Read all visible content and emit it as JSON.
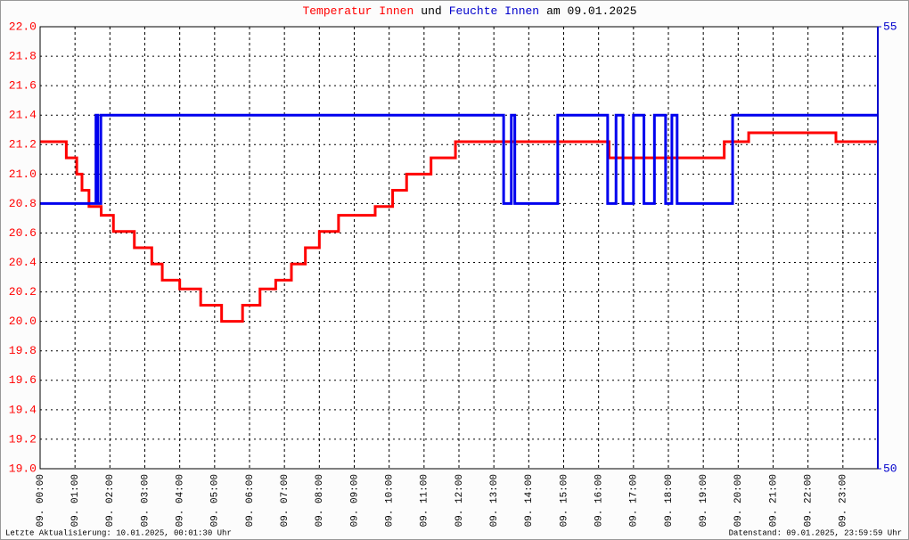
{
  "chart_data": {
    "type": "line",
    "title_parts": [
      {
        "text": "Temperatur Innen",
        "color": "#ff0000"
      },
      {
        "text": "und",
        "color": "#000000"
      },
      {
        "text": "Feuchte Innen",
        "color": "#0000cc"
      },
      {
        "text": "am 09.01.2025",
        "color": "#000000"
      }
    ],
    "footer_left": "Letzte Aktualisierung: 10.01.2025, 00:01:30 Uhr",
    "footer_right": "Datenstand: 09.01.2025, 23:59:59 Uhr",
    "grid": true,
    "xlim": [
      0,
      24
    ],
    "xticks": [
      {
        "value": 0,
        "label": "09. 00:00"
      },
      {
        "value": 1,
        "label": "09. 01:00"
      },
      {
        "value": 2,
        "label": "09. 02:00"
      },
      {
        "value": 3,
        "label": "09. 03:00"
      },
      {
        "value": 4,
        "label": "09. 04:00"
      },
      {
        "value": 5,
        "label": "09. 05:00"
      },
      {
        "value": 6,
        "label": "09. 06:00"
      },
      {
        "value": 7,
        "label": "09. 07:00"
      },
      {
        "value": 8,
        "label": "09. 08:00"
      },
      {
        "value": 9,
        "label": "09. 09:00"
      },
      {
        "value": 10,
        "label": "09. 10:00"
      },
      {
        "value": 11,
        "label": "09. 11:00"
      },
      {
        "value": 12,
        "label": "09. 12:00"
      },
      {
        "value": 13,
        "label": "09. 13:00"
      },
      {
        "value": 14,
        "label": "09. 14:00"
      },
      {
        "value": 15,
        "label": "09. 15:00"
      },
      {
        "value": 16,
        "label": "09. 16:00"
      },
      {
        "value": 17,
        "label": "09. 17:00"
      },
      {
        "value": 18,
        "label": "09. 18:00"
      },
      {
        "value": 19,
        "label": "09. 19:00"
      },
      {
        "value": 20,
        "label": "09. 20:00"
      },
      {
        "value": 21,
        "label": "09. 21:00"
      },
      {
        "value": 22,
        "label": "09. 22:00"
      },
      {
        "value": 23,
        "label": "09. 23:00"
      }
    ],
    "ylim": [
      19,
      22
    ],
    "yticks": [
      {
        "value": 19,
        "label": "19.0"
      },
      {
        "value": 19.2,
        "label": "19.2"
      },
      {
        "value": 19.4,
        "label": "19.4"
      },
      {
        "value": 19.6,
        "label": "19.6"
      },
      {
        "value": 19.8,
        "label": "19.8"
      },
      {
        "value": 20,
        "label": "20.0"
      },
      {
        "value": 20.2,
        "label": "20.2"
      },
      {
        "value": 20.4,
        "label": "20.4"
      },
      {
        "value": 20.6,
        "label": "20.6"
      },
      {
        "value": 20.8,
        "label": "20.8"
      },
      {
        "value": 21,
        "label": "21.0"
      },
      {
        "value": 21.2,
        "label": "21.2"
      },
      {
        "value": 21.4,
        "label": "21.4"
      },
      {
        "value": 21.6,
        "label": "21.6"
      },
      {
        "value": 21.8,
        "label": "21.8"
      },
      {
        "value": 22,
        "label": "22.0"
      }
    ],
    "y2lim": [
      50,
      55
    ],
    "y2ticks": [
      50,
      55
    ],
    "series": [
      {
        "name": "Temperatur Innen",
        "color": "#ff0000",
        "x": [
          0,
          0.75,
          0.75,
          1.05,
          1.05,
          1.2,
          1.2,
          1.4,
          1.4,
          1.75,
          1.75,
          2.1,
          2.1,
          2.7,
          2.7,
          3.2,
          3.2,
          3.5,
          3.5,
          4.0,
          4.0,
          4.6,
          4.6,
          5.2,
          5.2,
          5.8,
          5.8,
          6.3,
          6.3,
          6.75,
          6.75,
          7.2,
          7.2,
          7.6,
          7.6,
          8.0,
          8.0,
          8.55,
          8.55,
          9.6,
          9.6,
          10.1,
          10.1,
          10.5,
          10.5,
          11.2,
          11.2,
          11.9,
          11.9,
          16.3,
          16.3,
          19.6,
          19.6,
          20.3,
          20.3,
          22.8,
          22.8,
          24
        ],
        "values": [
          21.22,
          21.22,
          21.11,
          21.11,
          21.0,
          21.0,
          20.89,
          20.89,
          20.78,
          20.78,
          20.72,
          20.72,
          20.61,
          20.61,
          20.5,
          20.5,
          20.39,
          20.39,
          20.28,
          20.28,
          20.22,
          20.22,
          20.11,
          20.11,
          20.0,
          20.0,
          20.11,
          20.11,
          20.22,
          20.22,
          20.28,
          20.28,
          20.39,
          20.39,
          20.5,
          20.5,
          20.61,
          20.61,
          20.72,
          20.72,
          20.78,
          20.78,
          20.89,
          20.89,
          21.0,
          21.0,
          21.11,
          21.11,
          21.22,
          21.22,
          21.11,
          21.11,
          21.22,
          21.22,
          21.28,
          21.28,
          21.22,
          21.22
        ]
      },
      {
        "name": "Feuchte Innen",
        "color": "#0000ee",
        "axis": "y2",
        "x": [
          0,
          1.6,
          1.6,
          1.65,
          1.65,
          1.74,
          1.74,
          13.28,
          13.28,
          13.5,
          13.5,
          13.6,
          13.6,
          14.83,
          14.83,
          16.26,
          16.26,
          16.5,
          16.5,
          16.7,
          16.7,
          17.0,
          17.0,
          17.3,
          17.3,
          17.6,
          17.6,
          17.92,
          17.92,
          18.1,
          18.1,
          18.25,
          18.25,
          19.84,
          19.84,
          24
        ],
        "values": [
          53,
          53,
          54,
          54,
          53,
          53,
          54,
          54,
          53,
          53,
          54,
          54,
          53,
          53,
          54,
          54,
          53,
          53,
          54,
          54,
          53,
          53,
          54,
          54,
          53,
          53,
          54,
          54,
          53,
          53,
          54,
          54,
          53,
          53,
          54,
          54
        ]
      }
    ]
  }
}
